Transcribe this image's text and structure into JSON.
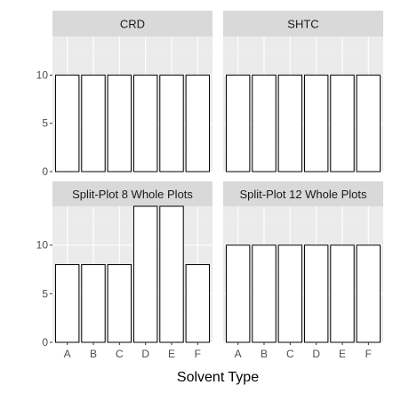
{
  "chart_data": {
    "type": "bar",
    "xlabel": "Solvent Type",
    "ylabel": "",
    "categories": [
      "A",
      "B",
      "C",
      "D",
      "E",
      "F"
    ],
    "ylim": [
      0,
      14
    ],
    "y_ticks": [
      0,
      5,
      10
    ],
    "grid": true,
    "panels": [
      {
        "title": "CRD",
        "values": [
          10,
          10,
          10,
          10,
          10,
          10
        ]
      },
      {
        "title": "SHTC",
        "values": [
          10,
          10,
          10,
          10,
          10,
          10
        ]
      },
      {
        "title": "Split-Plot 8 Whole Plots",
        "values": [
          8,
          8,
          8,
          14,
          14,
          8
        ]
      },
      {
        "title": "Split-Plot 12 Whole Plots",
        "values": [
          10,
          10,
          10,
          10,
          10,
          10
        ]
      }
    ]
  },
  "colors": {
    "panel_background": "#ebebeb",
    "strip_background": "#d9d9d9",
    "grid_major": "#ffffff",
    "grid_minor": "#f2f2f2",
    "bar_fill": "#ffffff",
    "bar_outline": "#000000"
  }
}
